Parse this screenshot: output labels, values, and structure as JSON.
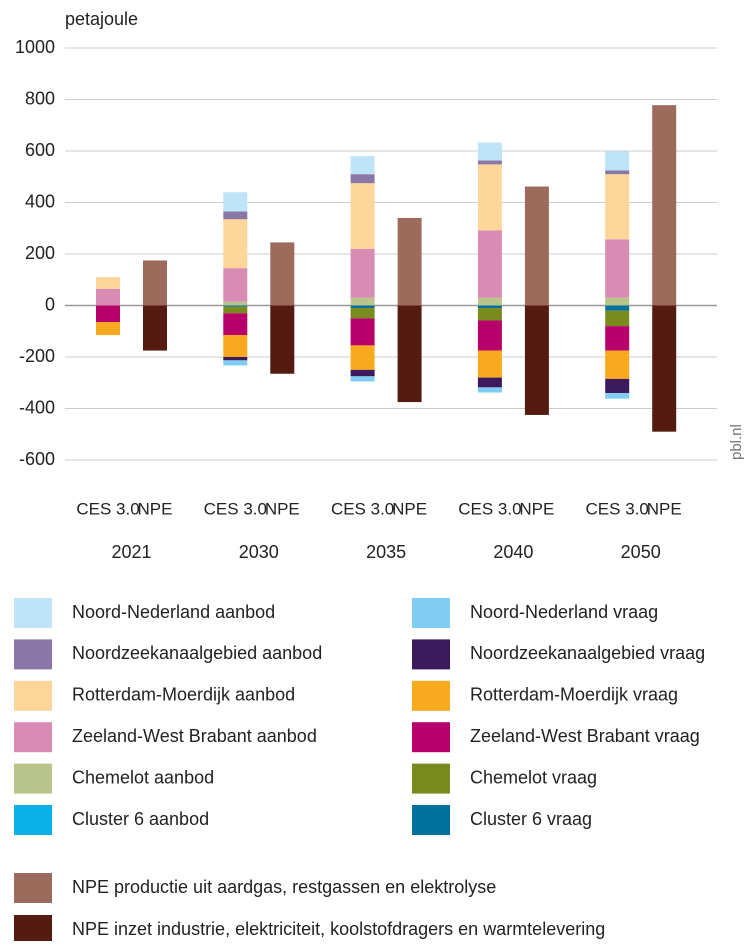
{
  "chart_data": {
    "type": "stacked-bar",
    "y_label": "petajoule",
    "source": "pbl.nl",
    "groups": [
      "2021",
      "2030",
      "2035",
      "2040",
      "2050"
    ],
    "categories": [
      "CES 3.0",
      "NPE",
      "CES 3.0",
      "NPE",
      "CES 3.0",
      "NPE",
      "CES 3.0",
      "NPE",
      "CES 3.0",
      "NPE"
    ],
    "ylim": [
      -600,
      1000
    ],
    "yticks": [
      -600,
      -400,
      -200,
      0,
      200,
      400,
      600,
      800,
      1000
    ],
    "grid": true,
    "series": [
      {
        "name": "Noord-Nederland aanbod",
        "color": "#bfe3f7",
        "values": [
          0,
          null,
          75,
          null,
          70,
          null,
          70,
          null,
          73,
          null
        ]
      },
      {
        "name": "Noord-Nederland vraag",
        "color": "#7fcdf3",
        "values": [
          0,
          null,
          -20,
          null,
          -20,
          null,
          -20,
          null,
          -22,
          null
        ]
      },
      {
        "name": "Noordzeekanaalgebied aanbod",
        "color": "#8a77a8",
        "values": [
          0,
          null,
          30,
          null,
          35,
          null,
          15,
          null,
          15,
          null
        ]
      },
      {
        "name": "Noordzeekanaalgebied vraag",
        "color": "#3d1a5e",
        "values": [
          0,
          null,
          -13,
          null,
          -25,
          null,
          -38,
          null,
          -55,
          null
        ]
      },
      {
        "name": "Rotterdam-Moerdijk aanbod",
        "color": "#ffd699",
        "values": [
          45,
          null,
          190,
          null,
          255,
          null,
          256,
          null,
          253,
          null
        ]
      },
      {
        "name": "Rotterdam-Moerdijk vraag",
        "color": "#f9a91e",
        "values": [
          -50,
          null,
          -85,
          null,
          -95,
          null,
          -105,
          null,
          -110,
          null
        ]
      },
      {
        "name": "Zeeland-West Brabant aanbod",
        "color": "#d98cb3",
        "values": [
          65,
          null,
          130,
          null,
          190,
          null,
          262,
          null,
          227,
          null
        ]
      },
      {
        "name": "Zeeland-West Brabant vraag",
        "color": "#b8006b",
        "values": [
          -65,
          null,
          -85,
          null,
          -105,
          null,
          -117,
          null,
          -95,
          null
        ]
      },
      {
        "name": "Chemelot aanbod",
        "color": "#b9c48a",
        "values": [
          0,
          null,
          15,
          null,
          30,
          null,
          30,
          null,
          30,
          null
        ]
      },
      {
        "name": "Chemelot vraag",
        "color": "#7a8b1d",
        "values": [
          0,
          null,
          -25,
          null,
          -40,
          null,
          -48,
          null,
          -60,
          null
        ]
      },
      {
        "name": "Cluster 6 aanbod",
        "color": "#08b1ea",
        "values": [
          0,
          null,
          0,
          null,
          0,
          null,
          0,
          null,
          0,
          null
        ]
      },
      {
        "name": "Cluster 6 vraag",
        "color": "#00709e",
        "values": [
          0,
          null,
          -5,
          null,
          -10,
          null,
          -10,
          null,
          -20,
          null
        ]
      },
      {
        "name": "NPE productie uit aardgas, restgassen en elektrolyse",
        "color": "#9c6b5c",
        "values": [
          null,
          175,
          null,
          245,
          null,
          340,
          null,
          462,
          null,
          778
        ]
      },
      {
        "name": "NPE inzet industrie, elektriciteit, koolstofdragers en warmtelevering",
        "color": "#551a10",
        "values": [
          null,
          -175,
          null,
          -265,
          null,
          -375,
          null,
          -425,
          null,
          -490
        ]
      }
    ]
  }
}
